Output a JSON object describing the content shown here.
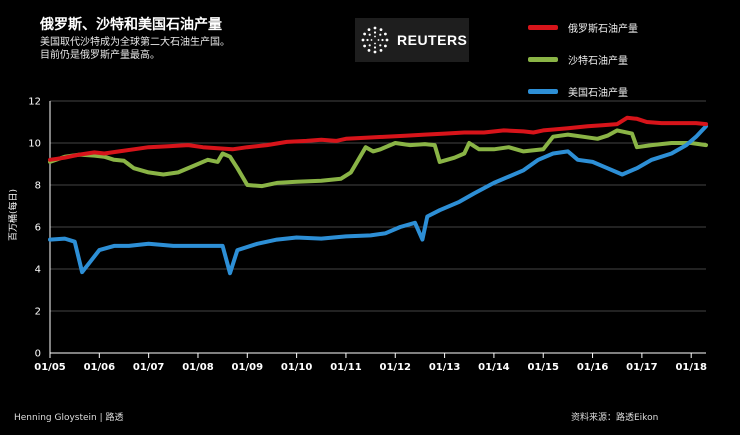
{
  "header": {
    "title": "俄罗斯、沙特和美国石油产量",
    "subtitle_1": "美国取代沙特成为全球第二大石油生产国。",
    "subtitle_2": "目前仍是俄罗斯产量最高。"
  },
  "logo": {
    "text": "REUTERS"
  },
  "footer": {
    "credit": "Henning Gloystein | 路透",
    "source": "资料来源：路透Eikon"
  },
  "colors": {
    "russia": "#d7141a",
    "saudi": "#8ab446",
    "usa": "#2d8fd6",
    "grid": "#8a8a8a",
    "axis": "#ffffff"
  },
  "chart_data": {
    "type": "line",
    "ylabel": "百万桶(每日)",
    "ylim": [
      0,
      12
    ],
    "yticks": [
      0,
      2,
      4,
      6,
      8,
      10,
      12
    ],
    "xlim": [
      2005.0,
      2018.3
    ],
    "xticks": [
      {
        "v": 2005,
        "label": "01/05"
      },
      {
        "v": 2006,
        "label": "01/06"
      },
      {
        "v": 2007,
        "label": "01/07"
      },
      {
        "v": 2008,
        "label": "01/08"
      },
      {
        "v": 2009,
        "label": "01/09"
      },
      {
        "v": 2010,
        "label": "01/10"
      },
      {
        "v": 2011,
        "label": "01/11"
      },
      {
        "v": 2012,
        "label": "01/12"
      },
      {
        "v": 2013,
        "label": "01/13"
      },
      {
        "v": 2014,
        "label": "01/14"
      },
      {
        "v": 2015,
        "label": "01/15"
      },
      {
        "v": 2016,
        "label": "01/16"
      },
      {
        "v": 2017,
        "label": "01/17"
      },
      {
        "v": 2018,
        "label": "01/18"
      }
    ],
    "grid": true,
    "legend_position": "top-right",
    "series": [
      {
        "name": "俄罗斯石油产量",
        "color_key": "russia",
        "points": [
          [
            2005.0,
            9.2
          ],
          [
            2005.3,
            9.3
          ],
          [
            2005.6,
            9.45
          ],
          [
            2005.9,
            9.55
          ],
          [
            2006.1,
            9.5
          ],
          [
            2006.4,
            9.6
          ],
          [
            2006.7,
            9.7
          ],
          [
            2007.0,
            9.8
          ],
          [
            2007.4,
            9.85
          ],
          [
            2007.8,
            9.9
          ],
          [
            2008.1,
            9.8
          ],
          [
            2008.4,
            9.75
          ],
          [
            2008.7,
            9.7
          ],
          [
            2009.0,
            9.8
          ],
          [
            2009.4,
            9.9
          ],
          [
            2009.8,
            10.05
          ],
          [
            2010.2,
            10.1
          ],
          [
            2010.5,
            10.15
          ],
          [
            2010.8,
            10.1
          ],
          [
            2011.0,
            10.2
          ],
          [
            2011.4,
            10.25
          ],
          [
            2011.8,
            10.3
          ],
          [
            2012.2,
            10.35
          ],
          [
            2012.6,
            10.4
          ],
          [
            2013.0,
            10.45
          ],
          [
            2013.4,
            10.5
          ],
          [
            2013.8,
            10.5
          ],
          [
            2014.2,
            10.6
          ],
          [
            2014.6,
            10.55
          ],
          [
            2014.8,
            10.5
          ],
          [
            2015.0,
            10.6
          ],
          [
            2015.5,
            10.7
          ],
          [
            2015.9,
            10.8
          ],
          [
            2016.2,
            10.85
          ],
          [
            2016.5,
            10.9
          ],
          [
            2016.7,
            11.2
          ],
          [
            2016.9,
            11.15
          ],
          [
            2017.1,
            11.0
          ],
          [
            2017.4,
            10.95
          ],
          [
            2017.8,
            10.95
          ],
          [
            2018.1,
            10.95
          ],
          [
            2018.3,
            10.9
          ]
        ]
      },
      {
        "name": "沙特石油产量",
        "color_key": "saudi",
        "points": [
          [
            2005.0,
            9.1
          ],
          [
            2005.3,
            9.35
          ],
          [
            2005.6,
            9.45
          ],
          [
            2005.9,
            9.4
          ],
          [
            2006.1,
            9.35
          ],
          [
            2006.3,
            9.2
          ],
          [
            2006.5,
            9.15
          ],
          [
            2006.7,
            8.8
          ],
          [
            2007.0,
            8.6
          ],
          [
            2007.3,
            8.5
          ],
          [
            2007.6,
            8.6
          ],
          [
            2007.9,
            8.9
          ],
          [
            2008.2,
            9.2
          ],
          [
            2008.4,
            9.1
          ],
          [
            2008.5,
            9.5
          ],
          [
            2008.65,
            9.35
          ],
          [
            2008.8,
            8.8
          ],
          [
            2009.0,
            8.0
          ],
          [
            2009.3,
            7.95
          ],
          [
            2009.6,
            8.1
          ],
          [
            2010.0,
            8.15
          ],
          [
            2010.5,
            8.2
          ],
          [
            2010.9,
            8.3
          ],
          [
            2011.1,
            8.6
          ],
          [
            2011.25,
            9.2
          ],
          [
            2011.4,
            9.8
          ],
          [
            2011.55,
            9.6
          ],
          [
            2011.7,
            9.7
          ],
          [
            2012.0,
            10.0
          ],
          [
            2012.3,
            9.9
          ],
          [
            2012.6,
            9.95
          ],
          [
            2012.8,
            9.9
          ],
          [
            2012.9,
            9.1
          ],
          [
            2013.2,
            9.3
          ],
          [
            2013.4,
            9.5
          ],
          [
            2013.5,
            10.0
          ],
          [
            2013.7,
            9.7
          ],
          [
            2014.0,
            9.7
          ],
          [
            2014.3,
            9.8
          ],
          [
            2014.6,
            9.6
          ],
          [
            2015.0,
            9.7
          ],
          [
            2015.2,
            10.3
          ],
          [
            2015.5,
            10.4
          ],
          [
            2015.8,
            10.3
          ],
          [
            2016.1,
            10.2
          ],
          [
            2016.3,
            10.35
          ],
          [
            2016.5,
            10.6
          ],
          [
            2016.8,
            10.45
          ],
          [
            2016.9,
            9.8
          ],
          [
            2017.2,
            9.9
          ],
          [
            2017.6,
            10.0
          ],
          [
            2018.0,
            10.0
          ],
          [
            2018.3,
            9.9
          ]
        ]
      },
      {
        "name": "美国石油产量",
        "color_key": "usa",
        "points": [
          [
            2005.0,
            5.4
          ],
          [
            2005.3,
            5.45
          ],
          [
            2005.5,
            5.3
          ],
          [
            2005.65,
            3.85
          ],
          [
            2005.8,
            4.3
          ],
          [
            2006.0,
            4.9
          ],
          [
            2006.3,
            5.1
          ],
          [
            2006.6,
            5.1
          ],
          [
            2007.0,
            5.2
          ],
          [
            2007.5,
            5.1
          ],
          [
            2008.0,
            5.1
          ],
          [
            2008.5,
            5.1
          ],
          [
            2008.65,
            3.8
          ],
          [
            2008.8,
            4.9
          ],
          [
            2009.2,
            5.2
          ],
          [
            2009.6,
            5.4
          ],
          [
            2010.0,
            5.5
          ],
          [
            2010.5,
            5.45
          ],
          [
            2011.0,
            5.55
          ],
          [
            2011.5,
            5.6
          ],
          [
            2011.8,
            5.7
          ],
          [
            2012.1,
            6.0
          ],
          [
            2012.4,
            6.2
          ],
          [
            2012.55,
            5.4
          ],
          [
            2012.65,
            6.5
          ],
          [
            2012.9,
            6.8
          ],
          [
            2013.3,
            7.2
          ],
          [
            2013.6,
            7.6
          ],
          [
            2014.0,
            8.1
          ],
          [
            2014.3,
            8.4
          ],
          [
            2014.6,
            8.7
          ],
          [
            2014.9,
            9.2
          ],
          [
            2015.2,
            9.5
          ],
          [
            2015.5,
            9.6
          ],
          [
            2015.7,
            9.2
          ],
          [
            2016.0,
            9.1
          ],
          [
            2016.3,
            8.8
          ],
          [
            2016.6,
            8.5
          ],
          [
            2016.9,
            8.8
          ],
          [
            2017.2,
            9.2
          ],
          [
            2017.6,
            9.5
          ],
          [
            2017.9,
            9.9
          ],
          [
            2018.1,
            10.3
          ],
          [
            2018.3,
            10.8
          ]
        ]
      }
    ]
  }
}
